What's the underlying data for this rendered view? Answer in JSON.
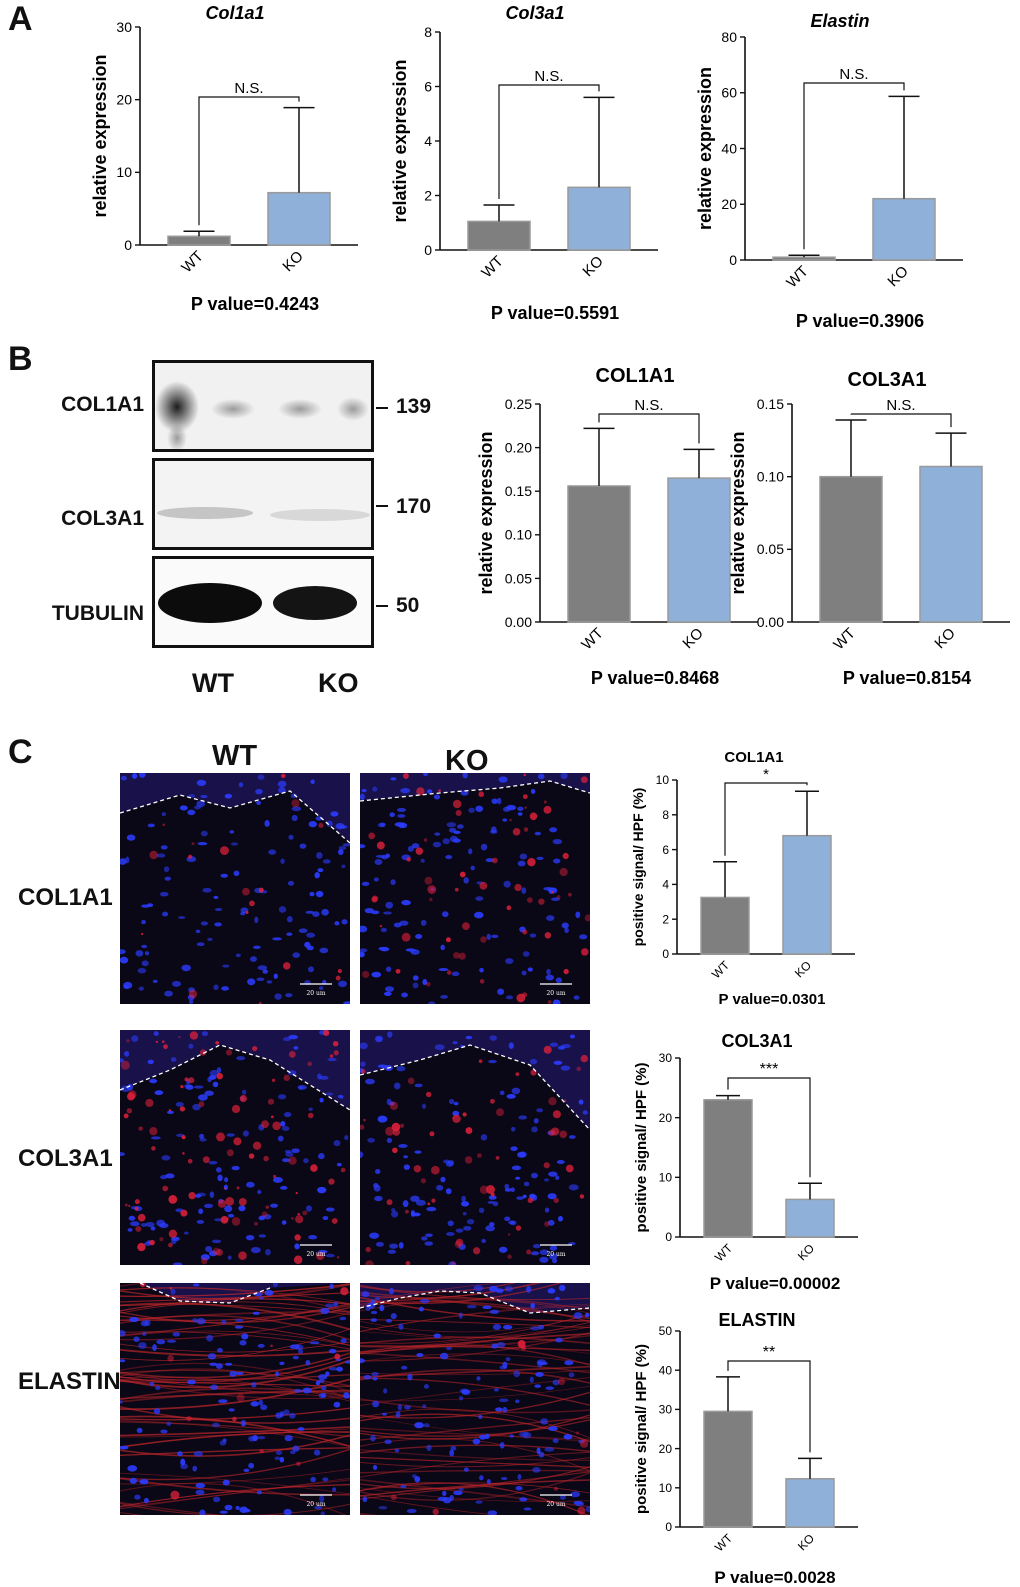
{
  "panels": {
    "a": "A",
    "b": "B",
    "c": "C"
  },
  "colors": {
    "wt": "#7f7f7f",
    "ko": "#8fb0d8",
    "edge": "#9a9a9a",
    "ink": "#111111"
  },
  "blot": {
    "rows": [
      {
        "label": "COL1A1",
        "mw": "139"
      },
      {
        "label": "COL3A1",
        "mw": "170"
      },
      {
        "label": "TUBULIN",
        "mw": "50"
      }
    ],
    "lanes": [
      "WT",
      "KO"
    ]
  },
  "if_panel": {
    "columns": [
      "WT",
      "KO"
    ],
    "rows": [
      "COL1A1",
      "COL3A1",
      "ELASTIN"
    ],
    "scale_label": "20 um"
  },
  "chart_data": [
    {
      "id": "a1",
      "type": "bar",
      "title": "Col1a1",
      "ylabel": "relative expression",
      "categories": [
        "WT",
        "KO"
      ],
      "values": [
        1.2,
        7.2
      ],
      "errors": [
        1.9,
        18.9
      ],
      "ylim": [
        0,
        30
      ],
      "yticks": [
        "0",
        "10",
        "20",
        "30"
      ],
      "sig": "N.S.",
      "pvalue": "P value=0.4243"
    },
    {
      "id": "a2",
      "type": "bar",
      "title": "Col3a1",
      "ylabel": "relative expression",
      "categories": [
        "WT",
        "KO"
      ],
      "values": [
        1.05,
        2.3
      ],
      "errors": [
        1.65,
        5.6
      ],
      "ylim": [
        0,
        8
      ],
      "yticks": [
        "0",
        "2",
        "4",
        "6",
        "8"
      ],
      "sig": "N.S.",
      "pvalue": "P value=0.5591"
    },
    {
      "id": "a3",
      "type": "bar",
      "title": "Elastin",
      "ylabel": "relative expression",
      "categories": [
        "WT",
        "KO"
      ],
      "values": [
        1.0,
        22.0
      ],
      "errors": [
        1.7,
        58.7
      ],
      "ylim": [
        0,
        80
      ],
      "yticks": [
        "0",
        "20",
        "40",
        "60",
        "80"
      ],
      "sig": "N.S.",
      "pvalue": "P value=0.3906"
    },
    {
      "id": "b1",
      "type": "bar",
      "title": "COL1A1",
      "ylabel": "relative expression",
      "categories": [
        "WT",
        "KO"
      ],
      "values": [
        0.156,
        0.165
      ],
      "errors": [
        0.222,
        0.198
      ],
      "ylim": [
        0,
        0.25
      ],
      "yticks": [
        "0.00",
        "0.05",
        "0.10",
        "0.15",
        "0.20",
        "0.25"
      ],
      "sig": "N.S.",
      "pvalue": "P value=0.8468"
    },
    {
      "id": "b2",
      "type": "bar",
      "title": "COL3A1",
      "ylabel": "relative expression",
      "categories": [
        "WT",
        "KO"
      ],
      "values": [
        0.1,
        0.107
      ],
      "errors": [
        0.139,
        0.13
      ],
      "ylim": [
        0,
        0.15
      ],
      "yticks": [
        "0.00",
        "0.05",
        "0.10",
        "0.15"
      ],
      "sig": "N.S.",
      "pvalue": "P value=0.8154"
    },
    {
      "id": "c1",
      "type": "bar",
      "title": "COL1A1",
      "ylabel": "positive signal/ HPF (%)",
      "categories": [
        "WT",
        "KO"
      ],
      "values": [
        3.25,
        6.8
      ],
      "errors": [
        5.3,
        9.35
      ],
      "ylim": [
        0,
        10
      ],
      "yticks": [
        "0",
        "2",
        "4",
        "6",
        "8",
        "10"
      ],
      "sig": "*",
      "pvalue": "P value=0.0301"
    },
    {
      "id": "c2",
      "type": "bar",
      "title": "COL3A1",
      "ylabel": "positive signal/ HPF (%)",
      "categories": [
        "WT",
        "KO"
      ],
      "values": [
        23.0,
        6.3
      ],
      "errors": [
        23.7,
        9.0
      ],
      "ylim": [
        0,
        30
      ],
      "yticks": [
        "0",
        "10",
        "20",
        "30"
      ],
      "sig": "***",
      "pvalue": "P value=0.00002"
    },
    {
      "id": "c3",
      "type": "bar",
      "title": "ELASTIN",
      "ylabel": "positive signal/ HPF (%)",
      "categories": [
        "WT",
        "KO"
      ],
      "values": [
        29.5,
        12.3
      ],
      "errors": [
        38.3,
        17.5
      ],
      "ylim": [
        0,
        50
      ],
      "yticks": [
        "0",
        "10",
        "20",
        "30",
        "40",
        "50"
      ],
      "sig": "**",
      "pvalue": "P value=0.0028"
    }
  ]
}
